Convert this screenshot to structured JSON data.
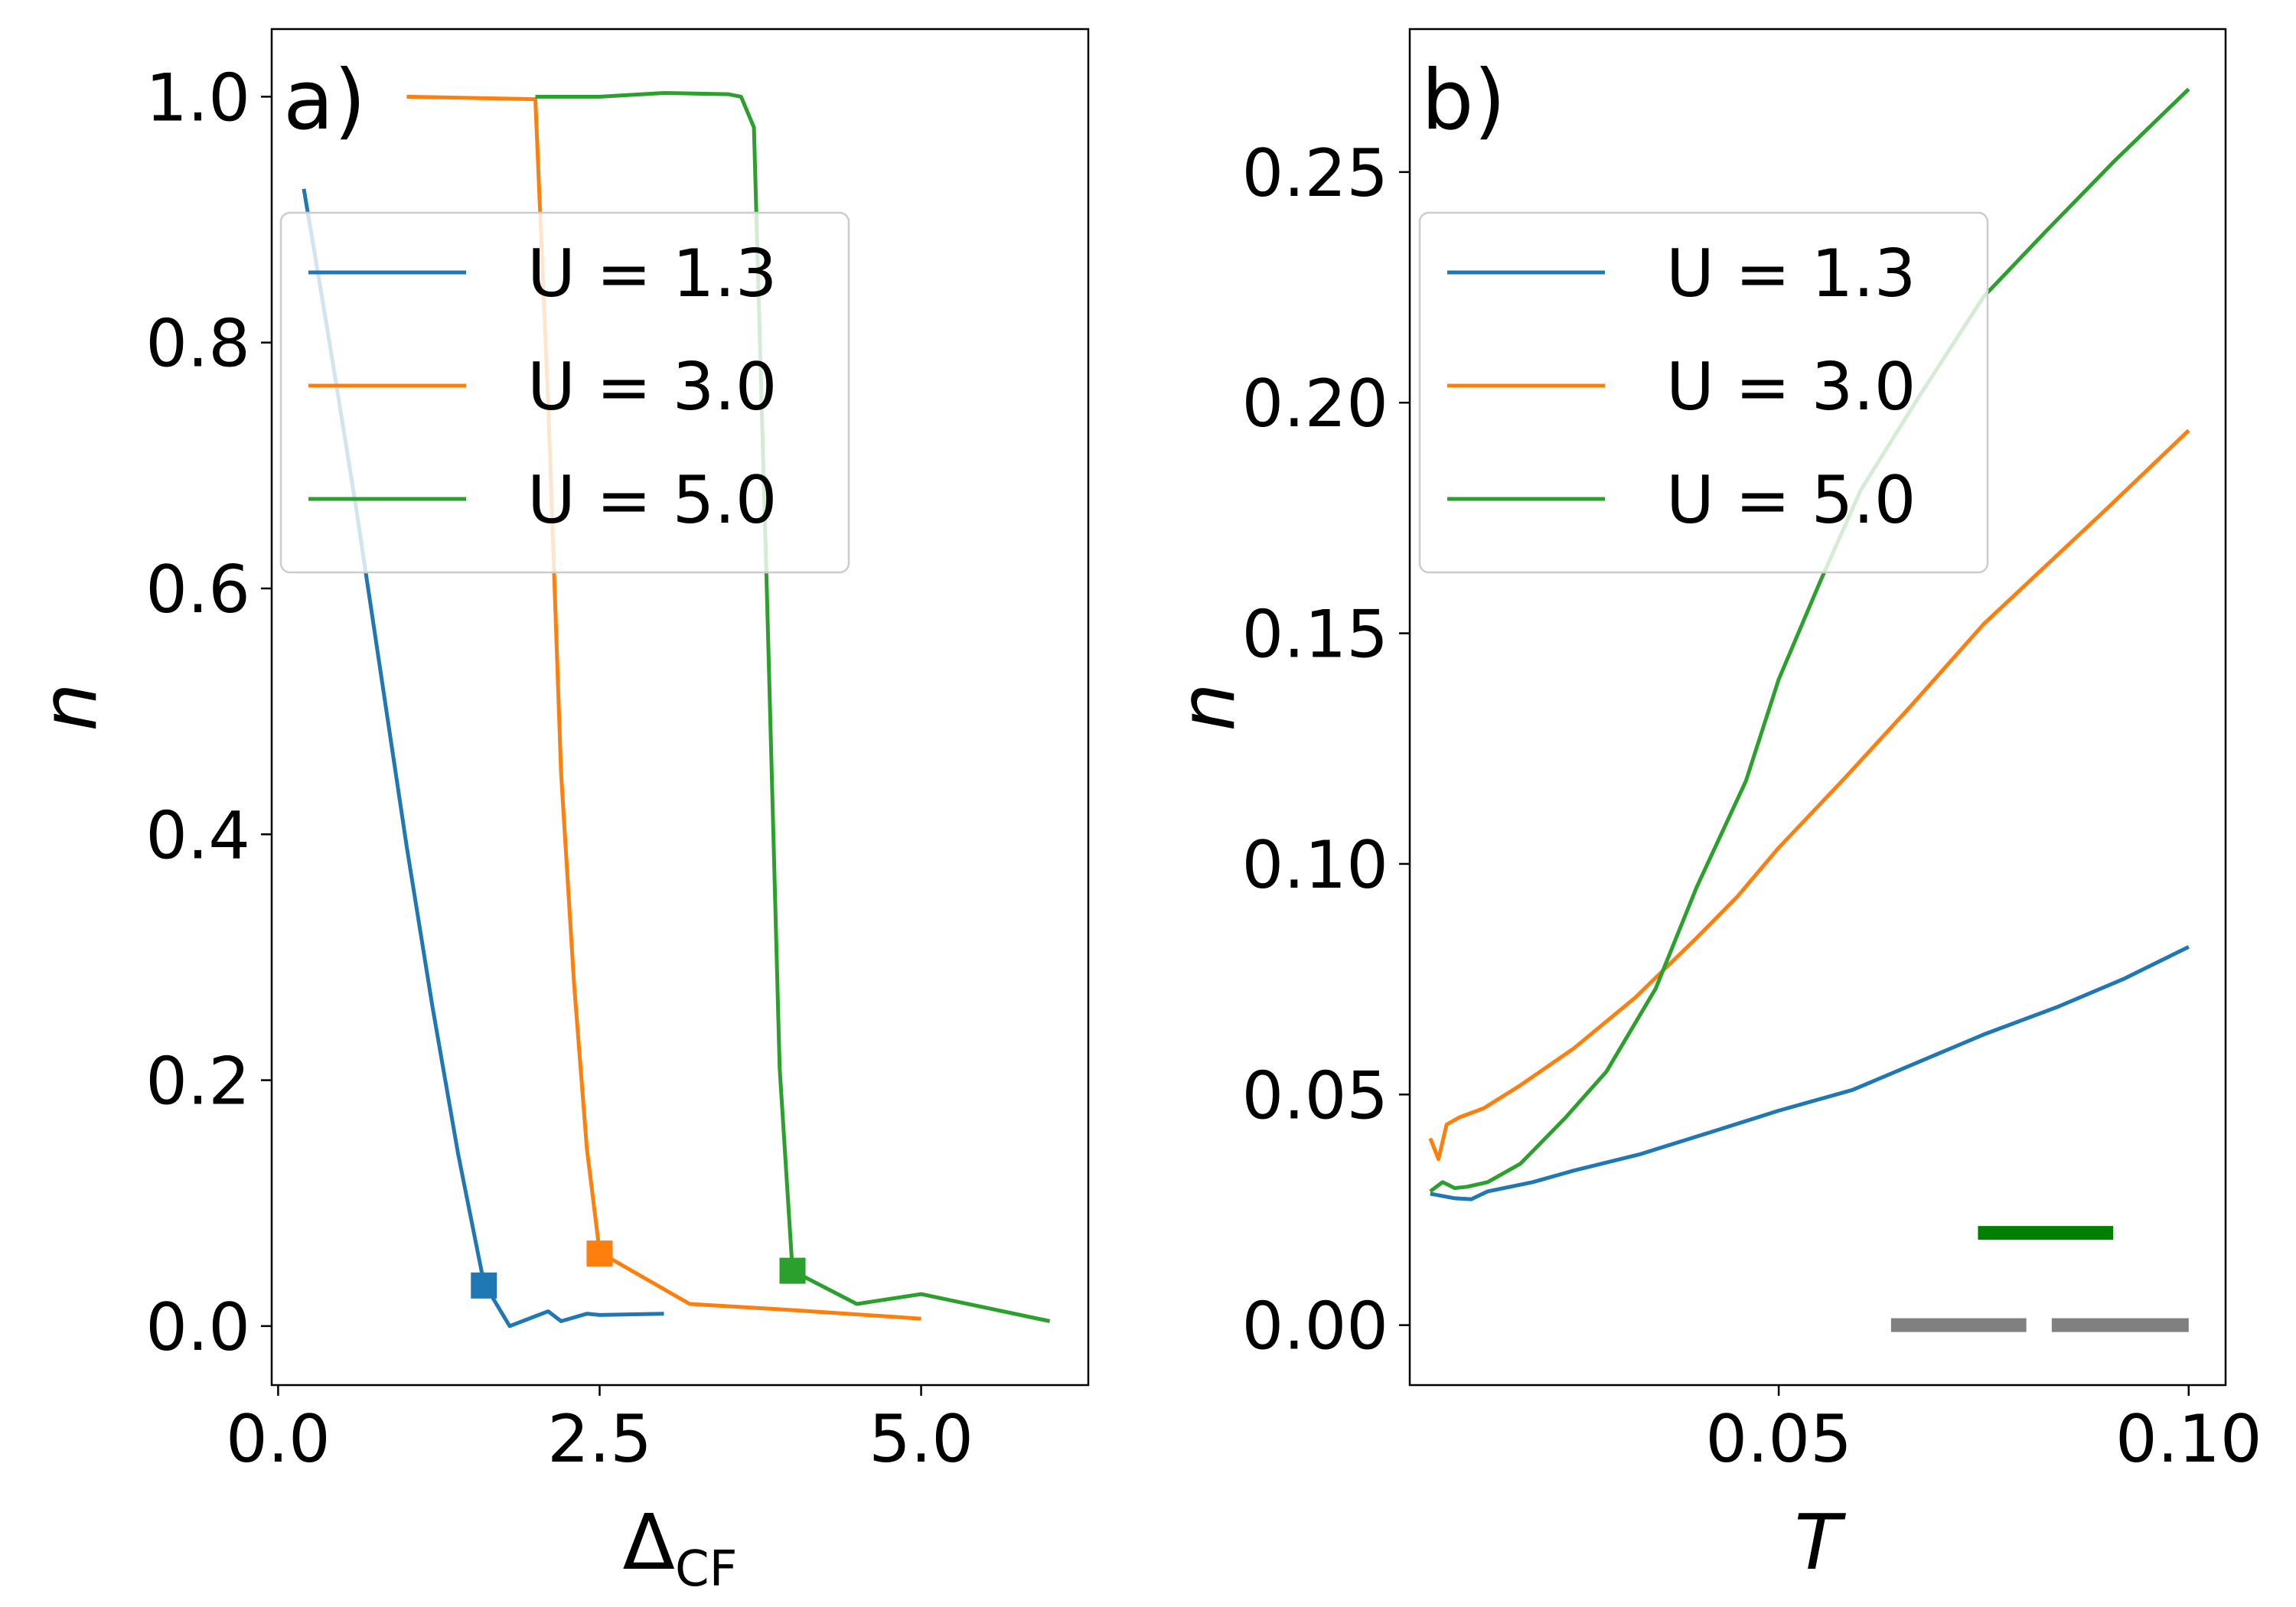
{
  "chart_data": [
    {
      "type": "line",
      "panel_label": "a)",
      "xlabel": "Δ",
      "xlabel_subscript": "CF",
      "ylabel": "n",
      "xlim": [
        -0.05,
        6.3
      ],
      "ylim": [
        -0.048,
        1.055
      ],
      "xticks": [
        0.0,
        2.5,
        5.0
      ],
      "xtick_labels": [
        "0.0",
        "2.5",
        "5.0"
      ],
      "yticks": [
        0.0,
        0.2,
        0.4,
        0.6,
        0.8,
        1.0
      ],
      "ytick_labels": [
        "0.0",
        "0.2",
        "0.4",
        "0.6",
        "0.8",
        "1.0"
      ],
      "legend_position": "upper-left",
      "grid": false,
      "series": [
        {
          "name": "U = 1.3",
          "color": "#1f77b4",
          "x": [
            0.2,
            0.4,
            0.6,
            0.8,
            1.0,
            1.2,
            1.4,
            1.6,
            1.8,
            2.0,
            2.1,
            2.2,
            2.4,
            2.5,
            3.0
          ],
          "y": [
            0.925,
            0.8,
            0.67,
            0.53,
            0.39,
            0.26,
            0.14,
            0.035,
            0.0,
            0.008,
            0.012,
            0.004,
            0.01,
            0.009,
            0.01
          ]
        },
        {
          "name": "U = 3.0",
          "color": "#ff7f0e",
          "x": [
            1.0,
            2.0,
            2.1,
            2.2,
            2.3,
            2.4,
            2.5,
            3.2,
            4.0,
            5.0
          ],
          "y": [
            1.0,
            0.998,
            0.75,
            0.45,
            0.28,
            0.145,
            0.06,
            0.018,
            0.013,
            0.006
          ]
        },
        {
          "name": "U = 5.0",
          "color": "#2ca02c",
          "x": [
            2.0,
            2.5,
            3.0,
            3.5,
            3.6,
            3.7,
            3.8,
            3.9,
            4.0,
            4.5,
            5.0,
            6.0
          ],
          "y": [
            1.0,
            1.0,
            1.003,
            1.002,
            1.0,
            0.975,
            0.6,
            0.21,
            0.045,
            0.018,
            0.026,
            0.004
          ]
        }
      ],
      "markers": [
        {
          "series": "U = 1.3",
          "x": 1.6,
          "y": 0.033,
          "color": "#1f77b4"
        },
        {
          "series": "U = 3.0",
          "x": 2.5,
          "y": 0.059,
          "color": "#ff7f0e"
        },
        {
          "series": "U = 5.0",
          "x": 4.0,
          "y": 0.045,
          "color": "#2ca02c"
        }
      ]
    },
    {
      "type": "line",
      "panel_label": "b)",
      "xlabel": "T",
      "ylabel": "n",
      "xlim": [
        0.005,
        0.1045
      ],
      "ylim": [
        -0.013,
        0.281
      ],
      "xticks": [
        0.05,
        0.1
      ],
      "xtick_labels": [
        "0.05",
        "0.10"
      ],
      "yticks": [
        0.0,
        0.05,
        0.1,
        0.15,
        0.2,
        0.25
      ],
      "ytick_labels": [
        "0.00",
        "0.05",
        "0.10",
        "0.15",
        "0.20",
        "0.25"
      ],
      "legend_position": "upper-left",
      "grid": false,
      "series": [
        {
          "name": "U = 1.3",
          "color": "#1f77b4",
          "x": [
            0.0075,
            0.009,
            0.0105,
            0.0125,
            0.0145,
            0.02,
            0.025,
            0.033,
            0.042,
            0.05,
            0.059,
            0.067,
            0.075,
            0.084,
            0.092,
            0.1
          ],
          "y": [
            0.0285,
            0.028,
            0.0275,
            0.0273,
            0.029,
            0.031,
            0.0335,
            0.037,
            0.042,
            0.0465,
            0.051,
            0.057,
            0.063,
            0.069,
            0.075,
            0.082
          ]
        },
        {
          "name": "U = 3.0",
          "color": "#ff7f0e",
          "x": [
            0.0075,
            0.0085,
            0.0095,
            0.011,
            0.014,
            0.0185,
            0.025,
            0.0325,
            0.04,
            0.045,
            0.05,
            0.058,
            0.066,
            0.075,
            0.0825,
            0.09,
            0.1
          ],
          "y": [
            0.0405,
            0.036,
            0.0435,
            0.045,
            0.047,
            0.052,
            0.06,
            0.071,
            0.084,
            0.093,
            0.1035,
            0.1185,
            0.134,
            0.152,
            0.1645,
            0.177,
            0.194
          ]
        },
        {
          "name": "U = 5.0",
          "color": "#2ca02c",
          "x": [
            0.0075,
            0.009,
            0.0105,
            0.012,
            0.0145,
            0.0185,
            0.024,
            0.029,
            0.035,
            0.04,
            0.046,
            0.05,
            0.055,
            0.06,
            0.067,
            0.075,
            0.0825,
            0.091,
            0.1
          ],
          "y": [
            0.029,
            0.031,
            0.0297,
            0.03,
            0.031,
            0.035,
            0.045,
            0.055,
            0.073,
            0.095,
            0.118,
            0.14,
            0.161,
            0.181,
            0.201,
            0.223,
            0.237,
            0.2525,
            0.268
          ]
        }
      ],
      "annotations": [
        {
          "kind": "bar",
          "color": "#008000",
          "x": [
            0.0743,
            0.0908
          ],
          "y": 0.02
        },
        {
          "kind": "bar",
          "color": "#808080",
          "x": [
            0.0637,
            0.0802
          ],
          "y": 0.0
        },
        {
          "kind": "bar",
          "color": "#808080",
          "x": [
            0.0833,
            0.1
          ],
          "y": 0.0
        }
      ]
    }
  ]
}
